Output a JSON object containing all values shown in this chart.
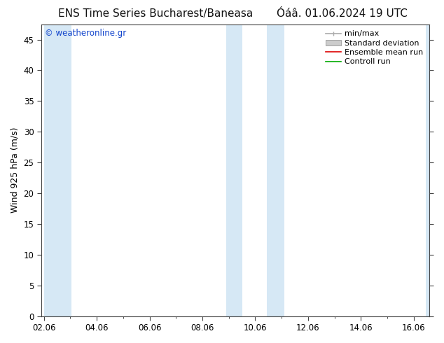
{
  "title_left": "ENS Time Series Bucharest/Baneasa",
  "title_right": "Óáâ. 01.06.2024 19 UTC",
  "ylabel": "Wind 925 hPa (m/s)",
  "watermark": "© weatheronline.gr",
  "ylim": [
    0,
    47.5
  ],
  "yticks": [
    0,
    5,
    10,
    15,
    20,
    25,
    30,
    35,
    40,
    45
  ],
  "x_tick_labels": [
    "02.06",
    "04.06",
    "06.06",
    "08.06",
    "10.06",
    "12.06",
    "14.06",
    "16.06"
  ],
  "x_tick_positions": [
    0,
    2,
    4,
    6,
    8,
    10,
    12,
    14
  ],
  "x_lim": [
    -0.1,
    14.6
  ],
  "shaded_bands": [
    {
      "x_start": -0.1,
      "x_end": 1.0
    },
    {
      "x_start": 7.0,
      "x_end": 8.0
    },
    {
      "x_start": 8.0,
      "x_end": 9.0
    },
    {
      "x_start": 14.5,
      "x_end": 14.6
    }
  ],
  "shaded_bands_v2": [
    {
      "x_start": 0.0,
      "x_end": 1.0
    },
    {
      "x_start": 7.0,
      "x_end": 7.5
    },
    {
      "x_start": 8.5,
      "x_end": 9.0
    },
    {
      "x_start": 14.0,
      "x_end": 14.6
    }
  ],
  "plot_bg_color": "#ffffff",
  "band_color": "#d6e8f5",
  "band_edge_color": "#c0d8ee",
  "legend_items": [
    {
      "label": "min/max",
      "color": "#aaaaaa",
      "lw": 1.2
    },
    {
      "label": "Standard deviation",
      "color": "#cccccc",
      "lw": 6
    },
    {
      "label": "Ensemble mean run",
      "color": "#dd0000",
      "lw": 1.2
    },
    {
      "label": "Controll run",
      "color": "#00aa00",
      "lw": 1.2
    }
  ],
  "title_fontsize": 11,
  "axis_label_fontsize": 9,
  "tick_fontsize": 8.5,
  "legend_fontsize": 8,
  "watermark_color": "#1144cc",
  "watermark_fontsize": 8.5,
  "spine_color": "#444444"
}
